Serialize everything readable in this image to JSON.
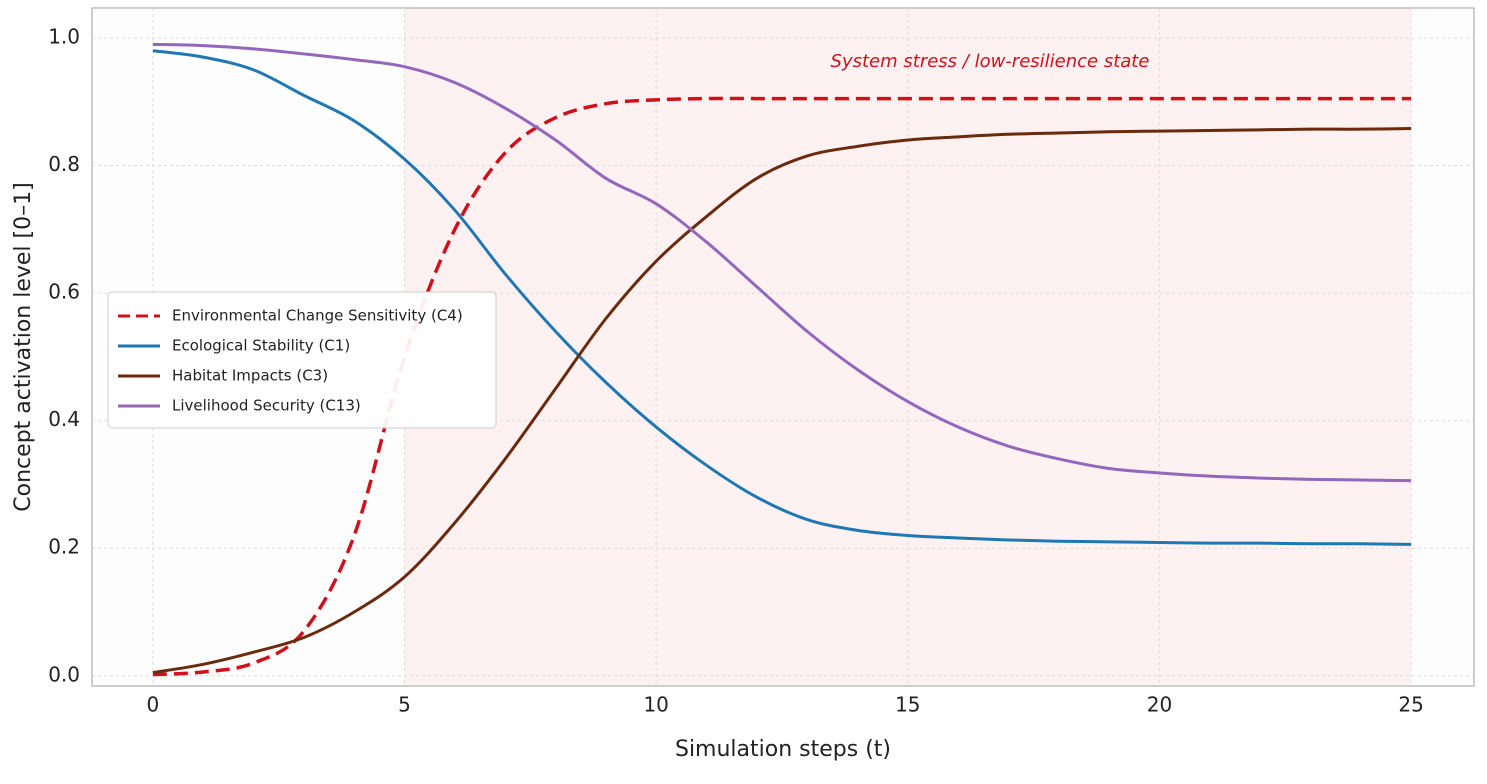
{
  "chart_data": {
    "type": "line",
    "xlabel": "Simulation steps (t)",
    "ylabel": "Concept activation level [0–1]",
    "annotation": "System stress / low-resilience state",
    "shaded_region": [
      5,
      25
    ],
    "x": [
      0,
      1,
      2,
      3,
      4,
      5,
      6,
      7,
      8,
      9,
      10,
      11,
      12,
      13,
      14,
      15,
      16,
      17,
      18,
      19,
      20,
      21,
      22,
      23,
      24,
      25
    ],
    "series": [
      {
        "name": "Environmental Change Sensitivity (C4)",
        "color": "#d0111b",
        "dashed": true,
        "values": [
          0.002,
          0.006,
          0.02,
          0.07,
          0.22,
          0.5,
          0.7,
          0.82,
          0.875,
          0.897,
          0.903,
          0.905,
          0.905,
          0.905,
          0.905,
          0.905,
          0.905,
          0.905,
          0.905,
          0.905,
          0.905,
          0.905,
          0.905,
          0.905,
          0.905,
          0.905
        ]
      },
      {
        "name": "Ecological Stability (C1)",
        "color": "#1f77b4",
        "values": [
          0.98,
          0.97,
          0.95,
          0.91,
          0.87,
          0.81,
          0.73,
          0.63,
          0.54,
          0.46,
          0.39,
          0.33,
          0.28,
          0.245,
          0.228,
          0.22,
          0.216,
          0.213,
          0.211,
          0.21,
          0.209,
          0.208,
          0.208,
          0.207,
          0.207,
          0.206
        ]
      },
      {
        "name": "Habitat Impacts (C3)",
        "color": "#6b2a0d",
        "values": [
          0.005,
          0.018,
          0.037,
          0.06,
          0.1,
          0.155,
          0.24,
          0.34,
          0.45,
          0.56,
          0.65,
          0.72,
          0.78,
          0.815,
          0.83,
          0.84,
          0.845,
          0.849,
          0.851,
          0.853,
          0.854,
          0.855,
          0.856,
          0.857,
          0.857,
          0.858
        ]
      },
      {
        "name": "Livelihood Security (C13)",
        "color": "#9467bd",
        "values": [
          0.99,
          0.988,
          0.983,
          0.975,
          0.966,
          0.955,
          0.93,
          0.89,
          0.84,
          0.78,
          0.74,
          0.68,
          0.61,
          0.54,
          0.48,
          0.43,
          0.39,
          0.36,
          0.34,
          0.325,
          0.318,
          0.313,
          0.31,
          0.308,
          0.307,
          0.306
        ]
      }
    ],
    "xlim": [
      -1.21,
      26.25
    ],
    "ylim": [
      -0.016,
      1.047
    ],
    "xticks": [
      0,
      5,
      10,
      15,
      20,
      25
    ],
    "yticks": [
      {
        "value": 0,
        "label": "0.0"
      },
      0.2,
      0.4,
      0.6,
      0.8,
      {
        "value": 1,
        "label": "1.0"
      }
    ],
    "grid": true,
    "legend": "left"
  }
}
